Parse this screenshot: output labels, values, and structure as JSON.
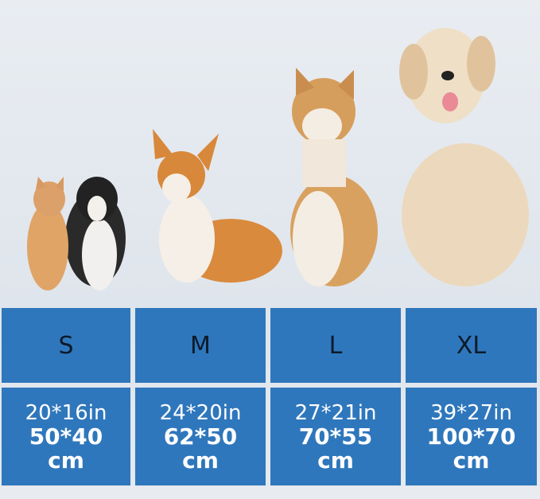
{
  "colors": {
    "cell": "#2f77bc",
    "background": "#e4e9ef",
    "size_text": "#0d1a2b",
    "dim_text": "#ffffff"
  },
  "images": [
    "cat-and-puppy",
    "corgi",
    "shiba-inu",
    "golden-retriever"
  ],
  "sizes": [
    {
      "label": "S",
      "inches": "20*16in",
      "cm": "50*40",
      "unit": "cm"
    },
    {
      "label": "M",
      "inches": "24*20in",
      "cm": "62*50",
      "unit": "cm"
    },
    {
      "label": "L",
      "inches": "27*21in",
      "cm": "70*55",
      "unit": "cm"
    },
    {
      "label": "XL",
      "inches": "39*27in",
      "cm": "100*70",
      "unit": "cm"
    }
  ]
}
